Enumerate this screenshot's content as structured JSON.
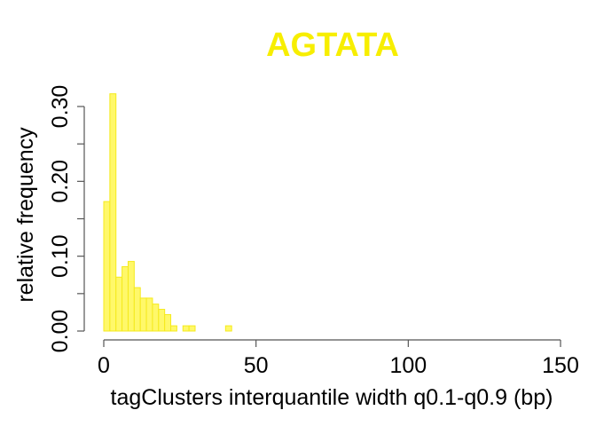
{
  "chart_data": {
    "type": "bar",
    "title": "AGTATA",
    "xlabel": "tagClusters interquantile width q0.1-q0.9 (bp)",
    "ylabel": "relative frequency",
    "xlim": [
      0,
      150
    ],
    "ylim": [
      0,
      0.32
    ],
    "x_ticks": [
      0,
      50,
      100,
      150
    ],
    "x_tick_labels": [
      "0",
      "50",
      "100",
      "150"
    ],
    "y_ticks": [
      0.0,
      0.05,
      0.1,
      0.15,
      0.2,
      0.25,
      0.3
    ],
    "y_tick_labels": [
      "0.00",
      "",
      "0.10",
      "",
      "0.20",
      "",
      "0.30"
    ],
    "bin_width": 2,
    "bin_starts": [
      0,
      2,
      4,
      6,
      8,
      10,
      12,
      14,
      16,
      18,
      20,
      22,
      24,
      26,
      28,
      30,
      32,
      34,
      36,
      38,
      40
    ],
    "values": [
      0.173,
      0.317,
      0.072,
      0.086,
      0.093,
      0.058,
      0.044,
      0.044,
      0.036,
      0.029,
      0.022,
      0.007,
      0.0,
      0.007,
      0.007,
      0.0,
      0.0,
      0.0,
      0.0,
      0.0,
      0.007
    ],
    "grid": false,
    "colors": {
      "bar_fill": "#fff86a",
      "bar_stroke": "#f5ea1c",
      "title": "#f7ee00",
      "axis": "#555555"
    }
  }
}
